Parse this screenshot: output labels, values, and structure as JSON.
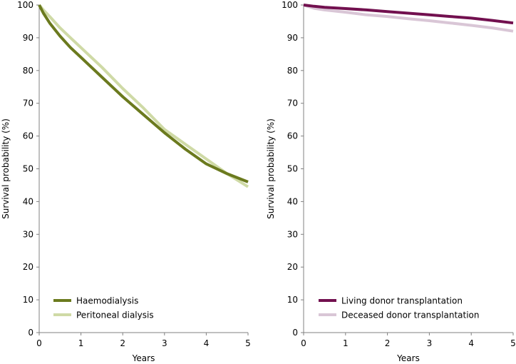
{
  "chart_data": [
    {
      "type": "line",
      "xlabel": "Years",
      "ylabel": "Survival probability (%)",
      "xlim": [
        0,
        5
      ],
      "ylim": [
        0,
        100
      ],
      "xticks": [
        0,
        1,
        2,
        3,
        4,
        5
      ],
      "yticks": [
        0,
        10,
        20,
        30,
        40,
        50,
        60,
        70,
        80,
        90,
        100
      ],
      "grid": false,
      "legend_position": "bottom-left",
      "series": [
        {
          "name": "Haemodialysis",
          "color": "#6b7a1e",
          "x": [
            0,
            0.1,
            0.25,
            0.5,
            0.75,
            1,
            1.5,
            2,
            2.5,
            3,
            3.5,
            4,
            4.5,
            5
          ],
          "y": [
            100,
            97.5,
            94.5,
            90.5,
            87,
            84,
            78,
            72,
            66.5,
            61,
            56,
            51.5,
            48.5,
            46
          ]
        },
        {
          "name": "Peritoneal dialysis",
          "color": "#cfdaa6",
          "x": [
            0,
            0.1,
            0.25,
            0.5,
            0.75,
            1,
            1.5,
            2,
            2.5,
            3,
            3.5,
            4,
            4.5,
            5
          ],
          "y": [
            100,
            98.5,
            96.5,
            93,
            90,
            87,
            81,
            74.5,
            68.5,
            62,
            57.5,
            53,
            48.5,
            44.5
          ]
        }
      ]
    },
    {
      "type": "line",
      "xlabel": "Years",
      "ylabel": "Survival probability (%)",
      "xlim": [
        0,
        5
      ],
      "ylim": [
        0,
        100
      ],
      "xticks": [
        0,
        1,
        2,
        3,
        4,
        5
      ],
      "yticks": [
        0,
        10,
        20,
        30,
        40,
        50,
        60,
        70,
        80,
        90,
        100
      ],
      "grid": false,
      "legend_position": "bottom-left",
      "series": [
        {
          "name": "Living donor transplantation",
          "color": "#72104f",
          "x": [
            0,
            0.25,
            0.5,
            1,
            1.5,
            2,
            2.5,
            3,
            3.5,
            4,
            4.5,
            5
          ],
          "y": [
            100,
            99.6,
            99.3,
            98.9,
            98.5,
            98,
            97.5,
            97,
            96.5,
            96,
            95.3,
            94.5
          ]
        },
        {
          "name": "Deceased donor transplantation",
          "color": "#d9c6d6",
          "x": [
            0,
            0.25,
            0.5,
            1,
            1.5,
            2,
            2.5,
            3,
            3.5,
            4,
            4.5,
            5
          ],
          "y": [
            100,
            99,
            98.5,
            97.8,
            97,
            96.5,
            95.8,
            95.2,
            94.5,
            93.8,
            93,
            92
          ]
        }
      ]
    }
  ]
}
